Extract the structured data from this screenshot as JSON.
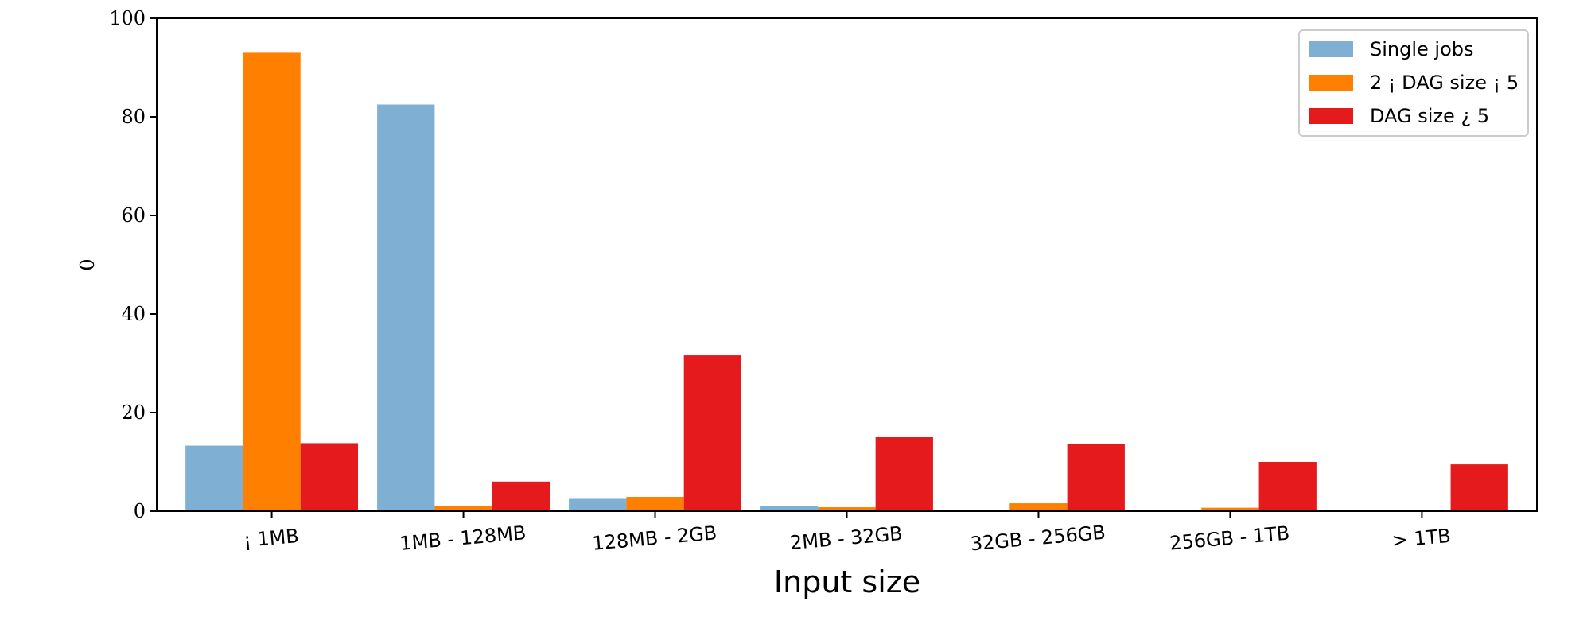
{
  "chart_data": {
    "type": "bar",
    "xlabel": "Input size",
    "ylabel": "0",
    "ylim": [
      0,
      100
    ],
    "yticks": [
      0,
      20,
      40,
      60,
      80,
      100
    ],
    "categories": [
      "¡ 1MB",
      "1MB - 128MB",
      "128MB - 2GB",
      "2MB - 32GB",
      "32GB - 256GB",
      "256GB - 1TB",
      "> 1TB"
    ],
    "series": [
      {
        "name": "Single jobs",
        "color": "#7fb0d3",
        "values": [
          13.3,
          82.5,
          2.5,
          1.0,
          0.2,
          0.2,
          0.0
        ]
      },
      {
        "name": "2 ¡ DAG size ¡ 5",
        "color": "#ff7f00",
        "values": [
          93.0,
          1.0,
          2.9,
          0.8,
          1.6,
          0.7,
          0.0
        ]
      },
      {
        "name": "DAG size ¿ 5",
        "color": "#e41a1c",
        "values": [
          13.8,
          6.0,
          31.6,
          15.0,
          13.7,
          10.0,
          9.5
        ]
      }
    ],
    "legend_position": "top-right",
    "grid": false
  }
}
